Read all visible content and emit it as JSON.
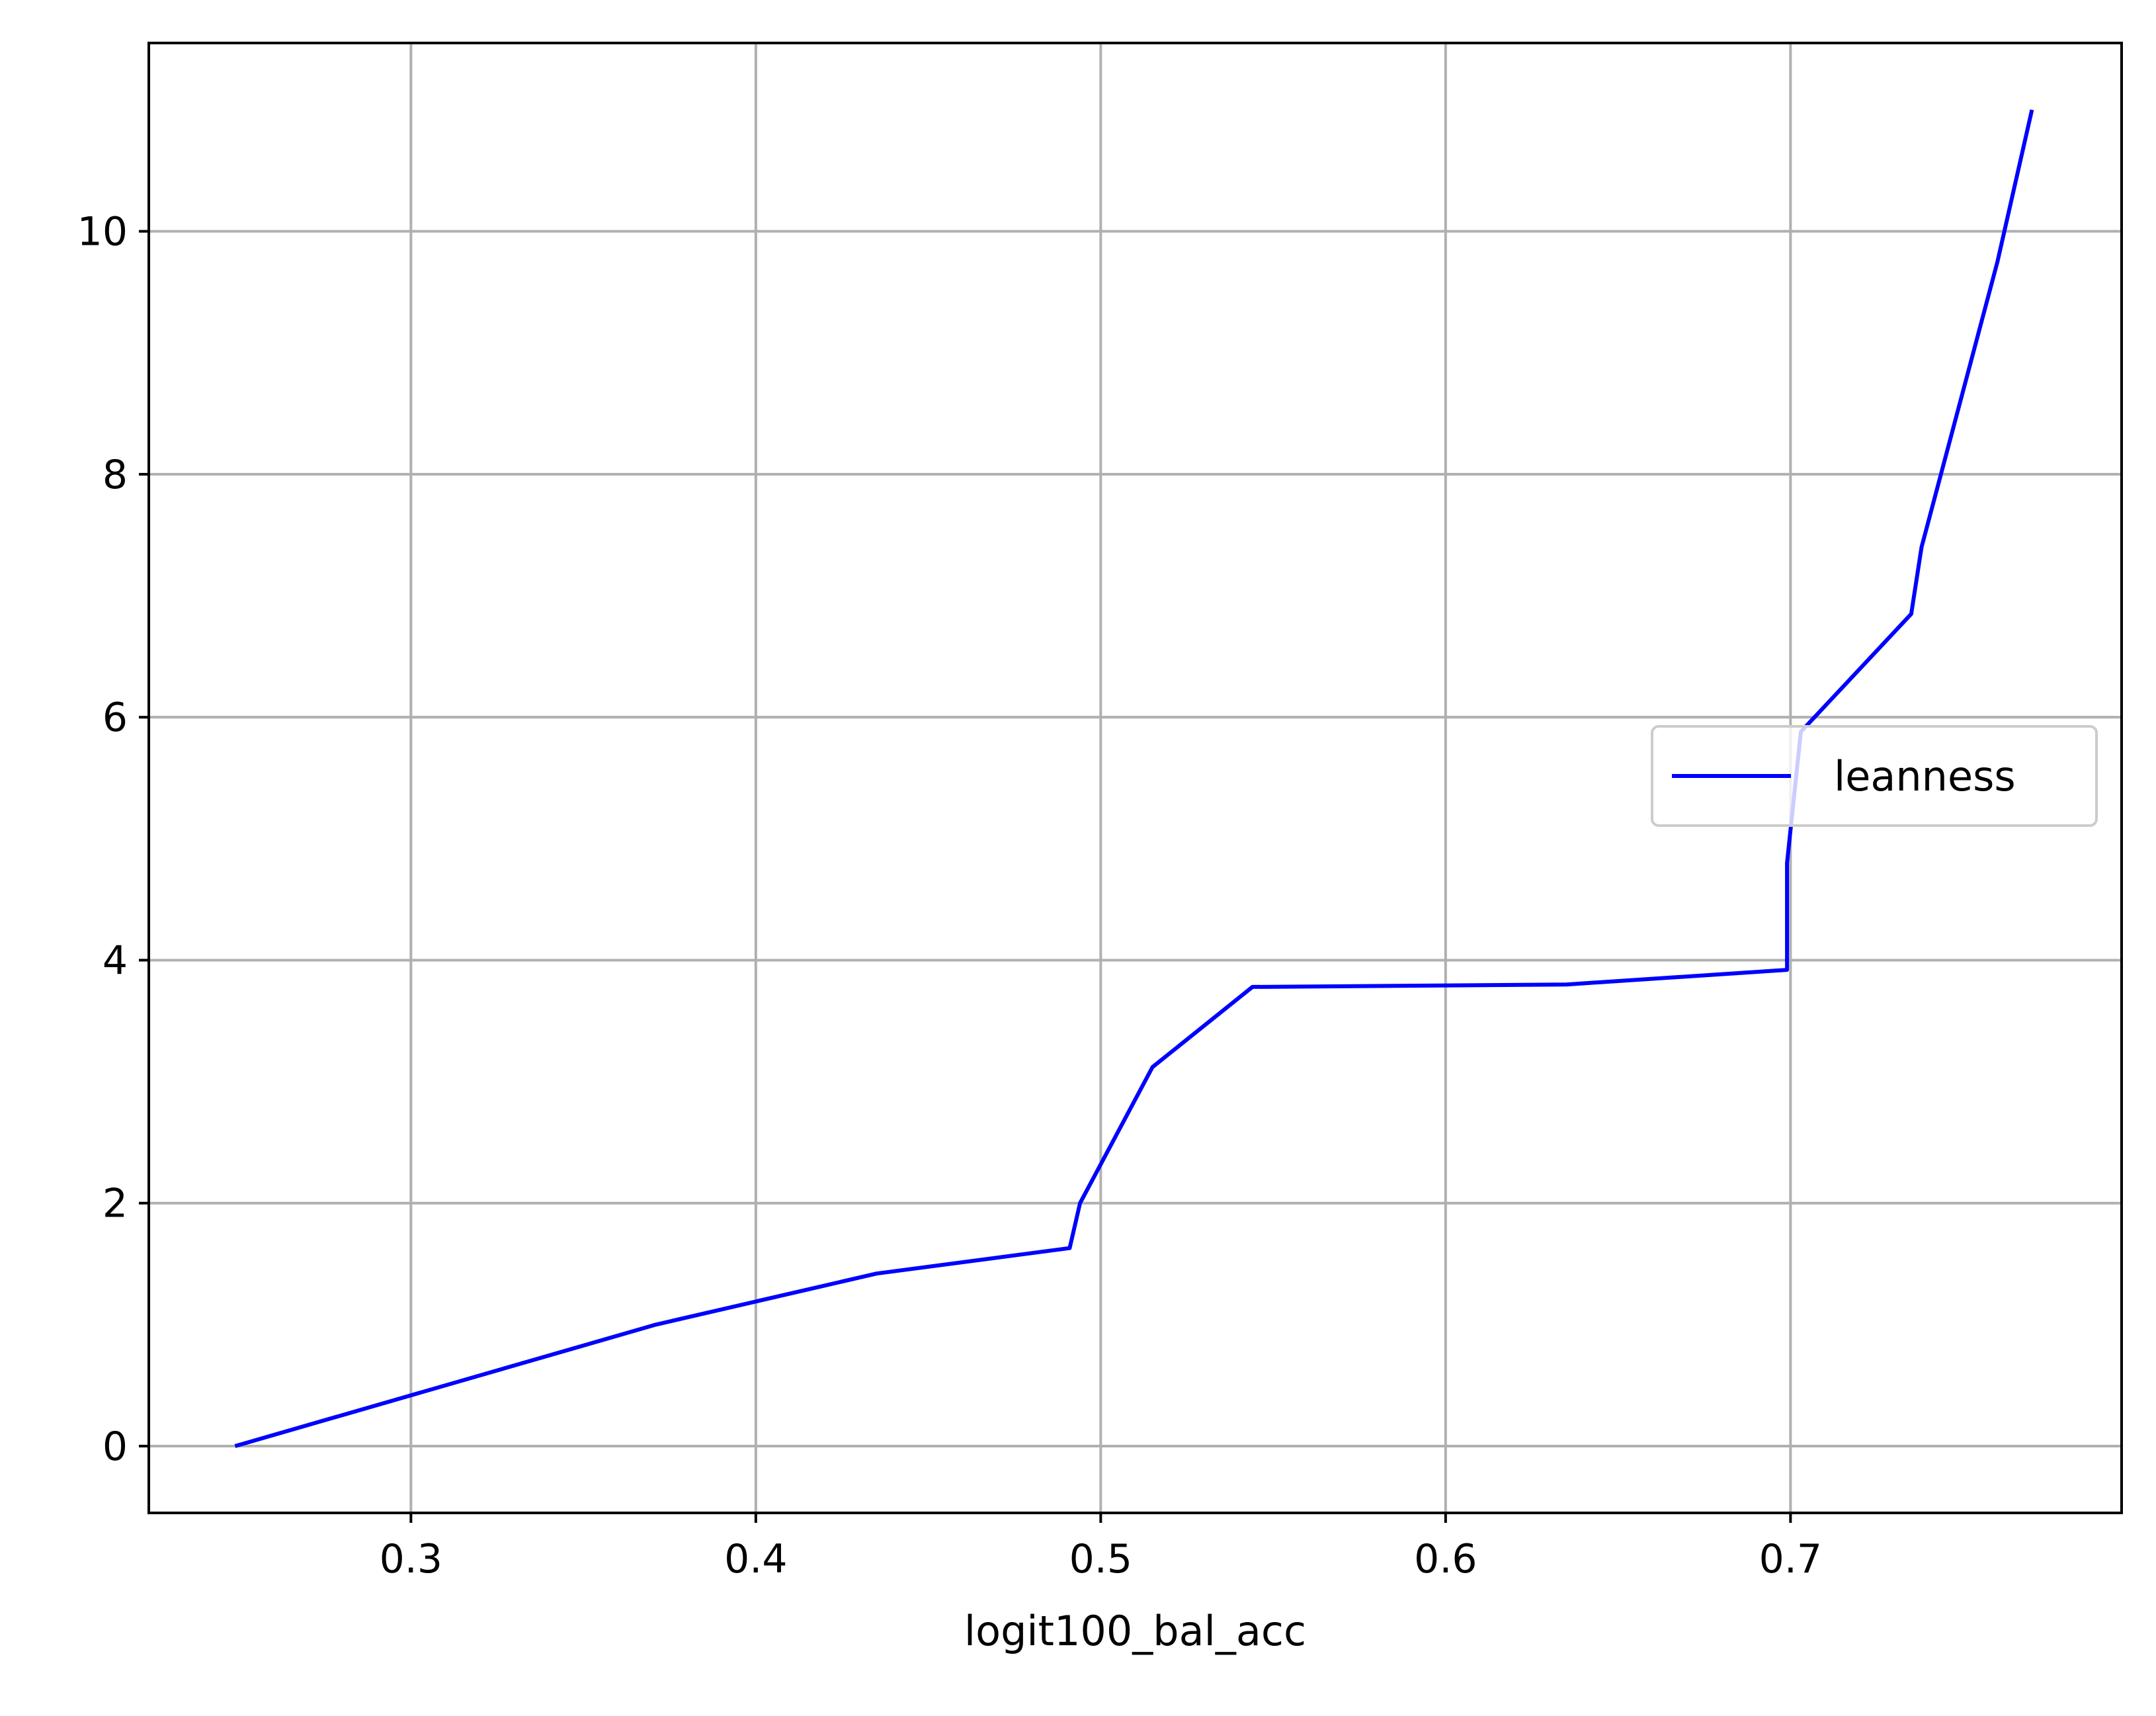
{
  "chart_data": {
    "type": "line",
    "title": "",
    "xlabel": "logit100_bal_acc",
    "ylabel": "",
    "xlim": [
      0.224,
      0.796
    ],
    "ylim": [
      -0.55,
      11.55
    ],
    "x_ticks": [
      0.3,
      0.4,
      0.5,
      0.6,
      0.7
    ],
    "x_tick_labels": [
      "0.3",
      "0.4",
      "0.5",
      "0.6",
      "0.7"
    ],
    "y_ticks": [
      0,
      2,
      4,
      6,
      8,
      10
    ],
    "y_tick_labels": [
      "0",
      "2",
      "4",
      "6",
      "8",
      "10"
    ],
    "grid": true,
    "legend_position": "center-right",
    "series": [
      {
        "name": "leanness",
        "color": "#0000ff",
        "x": [
          0.249,
          0.371,
          0.435,
          0.491,
          0.494,
          0.515,
          0.544,
          0.635,
          0.699,
          0.699,
          0.703,
          0.735,
          0.738,
          0.76,
          0.77
        ],
        "y": [
          0.0,
          1.0,
          1.42,
          1.63,
          2.0,
          3.12,
          3.78,
          3.8,
          3.92,
          4.8,
          5.88,
          6.85,
          7.4,
          9.75,
          11.0
        ]
      }
    ]
  }
}
